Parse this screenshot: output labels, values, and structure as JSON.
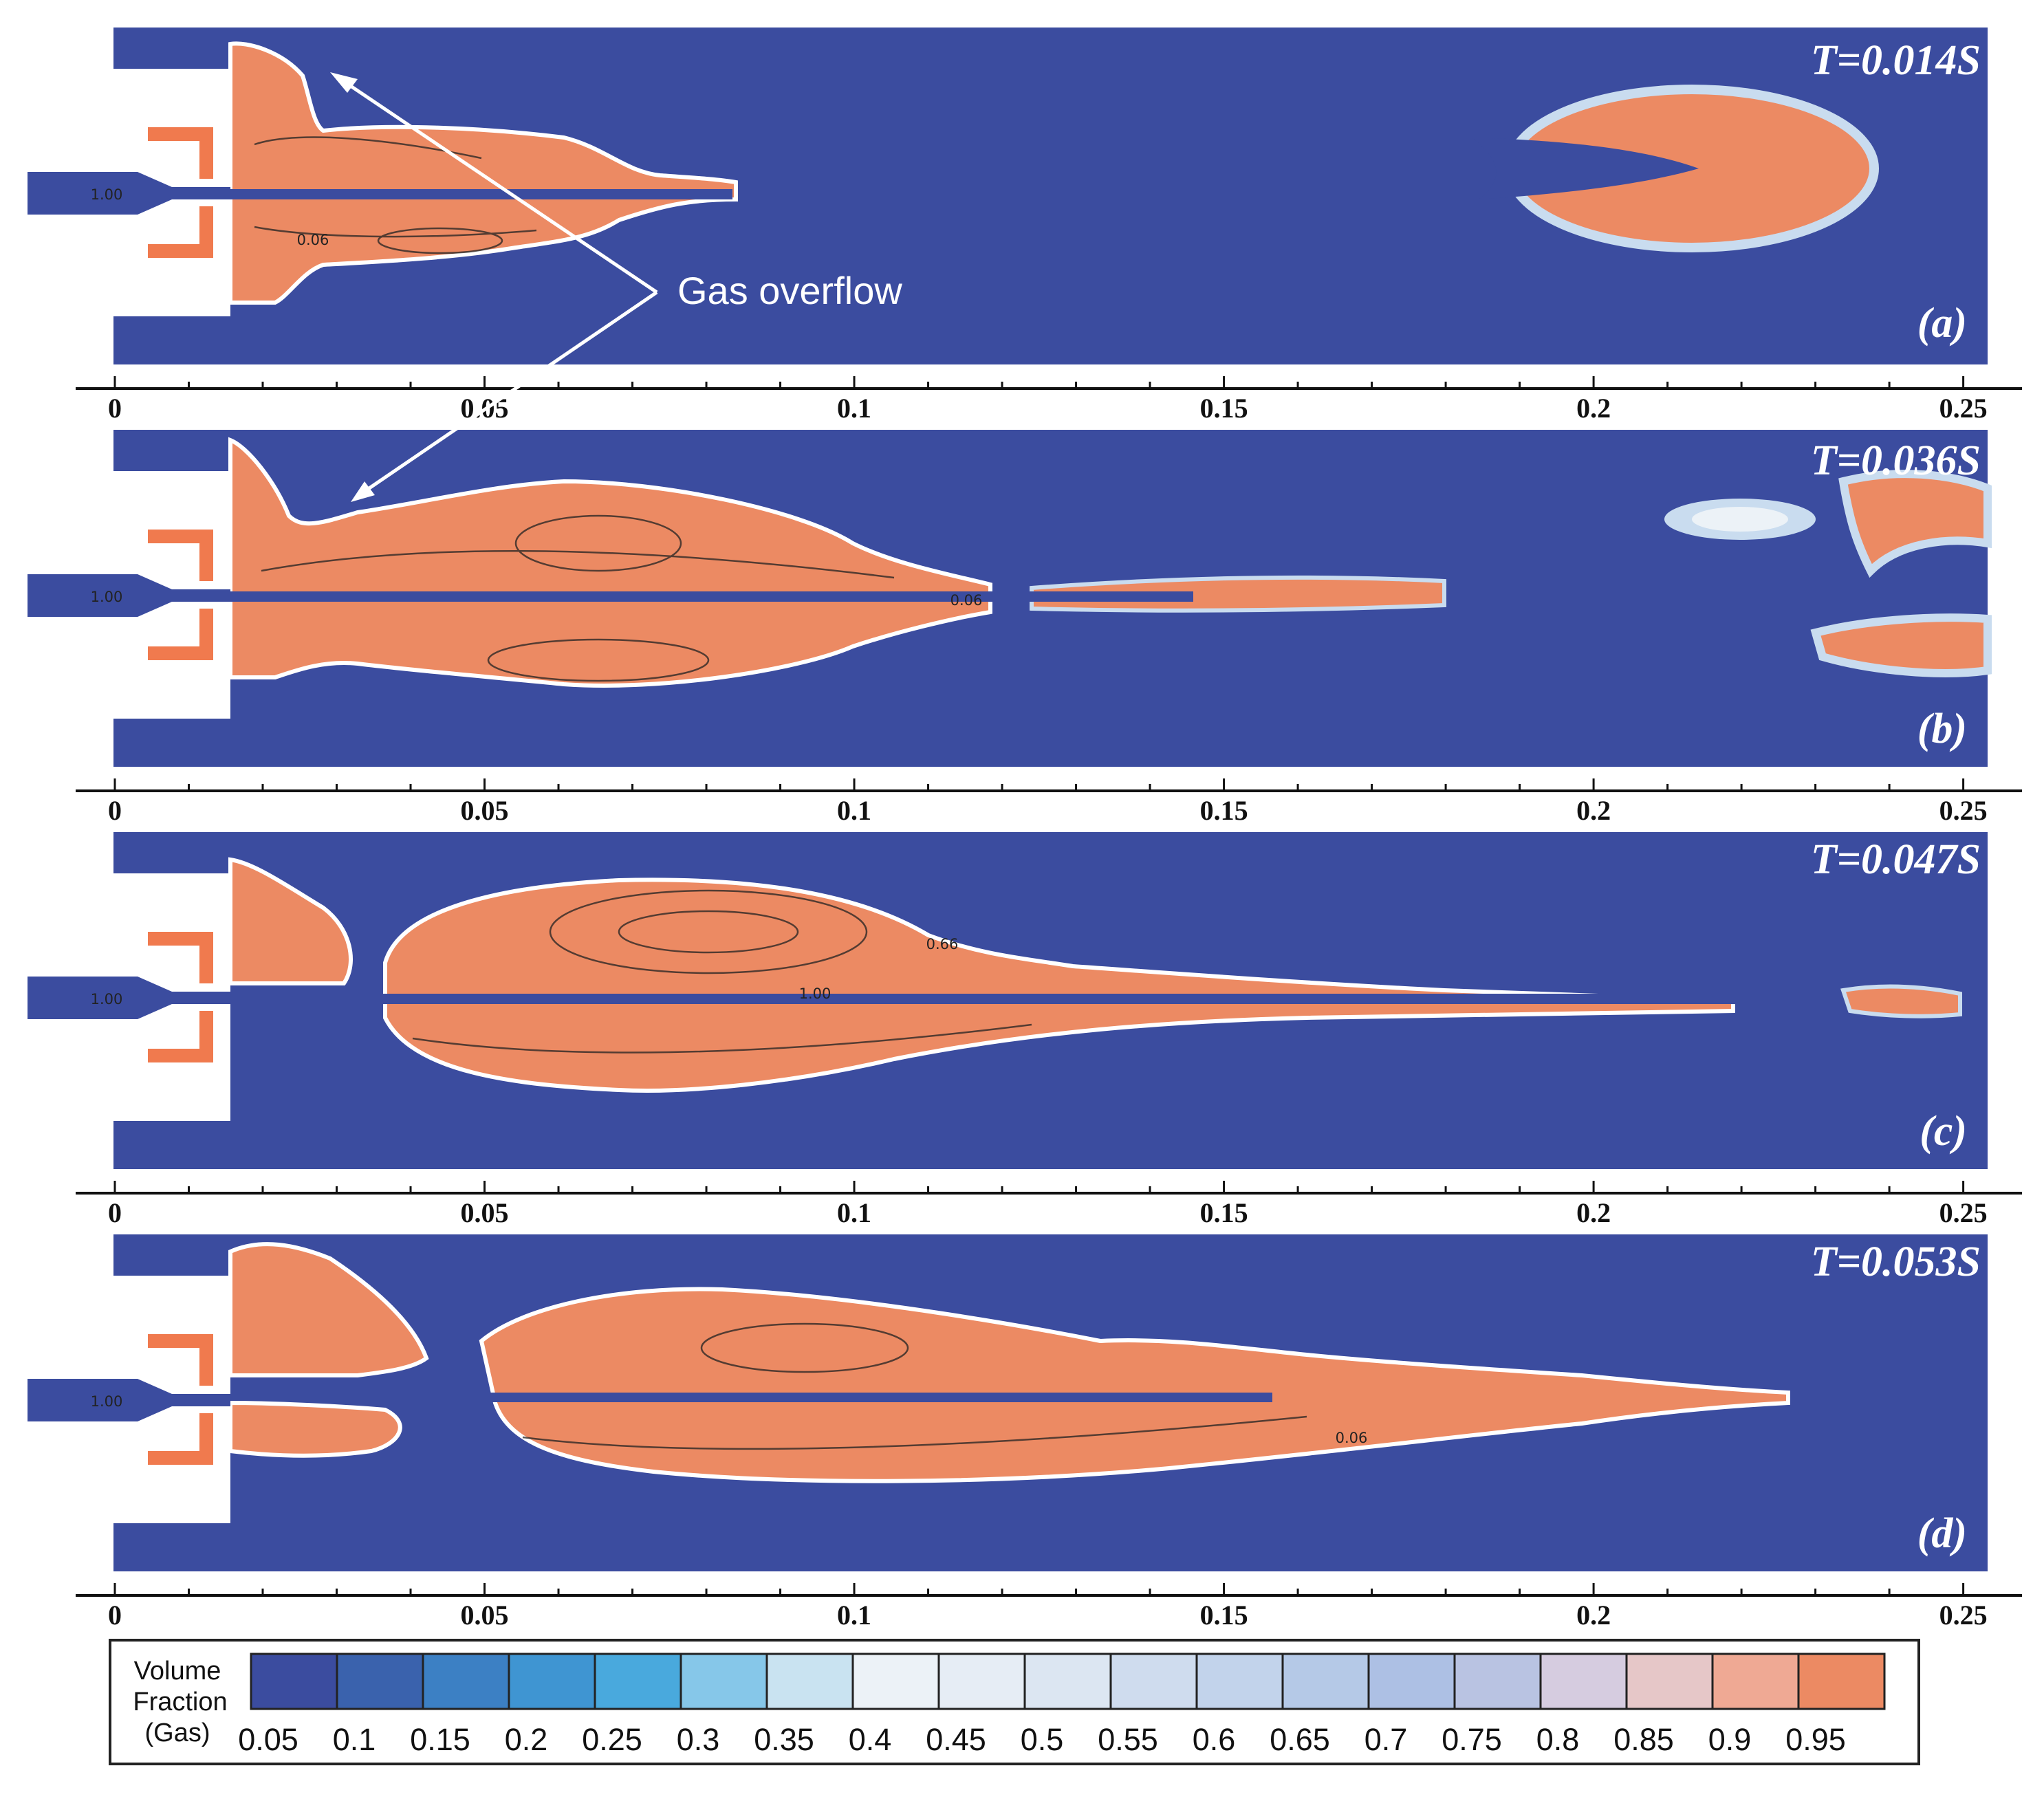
{
  "colors": {
    "liquid": "#3B4C9F",
    "gas": "#EC8A63",
    "nozzle_wall": "#F07A4E"
  },
  "panels": [
    {
      "time": "T=0.014S",
      "label": "(a)",
      "nozzle_value": "1.00",
      "contour_labels": [
        "0.06"
      ]
    },
    {
      "time": "T=0.036S",
      "label": "(b)",
      "nozzle_value": "1.00",
      "contour_labels": [
        "0.06"
      ]
    },
    {
      "time": "T=0.047S",
      "label": "(c)",
      "nozzle_value": "1.00",
      "contour_labels": [
        "0.66",
        "1.00"
      ]
    },
    {
      "time": "T=0.053S",
      "label": "(d)",
      "nozzle_value": "1.00",
      "contour_labels": [
        "0.06"
      ]
    }
  ],
  "axis": {
    "ticks": [
      "0",
      "0.05",
      "0.1",
      "0.15",
      "0.2",
      "0.25"
    ]
  },
  "annotation": {
    "text": "Gas overflow"
  },
  "legend": {
    "title_lines": [
      "Volume",
      "Fraction",
      "(Gas)"
    ],
    "values": [
      "0.05",
      "0.1",
      "0.15",
      "0.2",
      "0.25",
      "0.3",
      "0.35",
      "0.4",
      "0.45",
      "0.5",
      "0.55",
      "0.6",
      "0.65",
      "0.7",
      "0.75",
      "0.8",
      "0.85",
      "0.9",
      "0.95"
    ],
    "colors": [
      "#3B4C9F",
      "#3A62AD",
      "#3C80C4",
      "#3F95D2",
      "#49A9DD",
      "#86C7E9",
      "#C9E3F1",
      "#ECF2F7",
      "#E6EDF5",
      "#DCE6F2",
      "#CFDCEE",
      "#C2D3EB",
      "#B5C9E7",
      "#ADC0E4",
      "#B9C3E2",
      "#D6CCE0",
      "#E6C7C8",
      "#EFA994",
      "#EC8A63"
    ]
  }
}
